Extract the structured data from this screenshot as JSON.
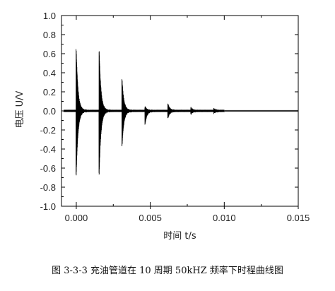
{
  "chart_data": {
    "type": "line",
    "xlabel": "时间 t/s",
    "ylabel": "电压 U/V",
    "xlim": [
      -0.001,
      0.015
    ],
    "ylim": [
      -1.0,
      1.0
    ],
    "xticks": [
      "0.000",
      "0.005",
      "0.010",
      "0.015"
    ],
    "xtick_values": [
      0.0,
      0.005,
      0.01,
      0.015
    ],
    "yticks": [
      "1.0",
      "0.8",
      "0.6",
      "0.4",
      "0.2",
      "0.0",
      "-0.2",
      "-0.4",
      "-0.6",
      "-0.8",
      "-1.0"
    ],
    "ytick_values": [
      1.0,
      0.8,
      0.6,
      0.4,
      0.2,
      0.0,
      -0.2,
      -0.4,
      -0.6,
      -0.8,
      -1.0
    ],
    "bursts": [
      {
        "t": 0.0,
        "peak": 0.64,
        "trough": -0.67
      },
      {
        "t": 0.00155,
        "peak": 0.63,
        "trough": -0.66
      },
      {
        "t": 0.0031,
        "peak": 0.32,
        "trough": -0.36
      },
      {
        "t": 0.00465,
        "peak": 0.04,
        "trough": -0.14
      },
      {
        "t": 0.0062,
        "peak": 0.07,
        "trough": -0.07
      },
      {
        "t": 0.00775,
        "peak": 0.03,
        "trough": -0.03
      },
      {
        "t": 0.0093,
        "peak": 0.02,
        "trough": -0.02
      }
    ],
    "signal_end_t": 0.01,
    "grid": false
  },
  "caption": "图 3-3-3  充油管道在 10 周期 50kHZ 频率下时程曲线图"
}
